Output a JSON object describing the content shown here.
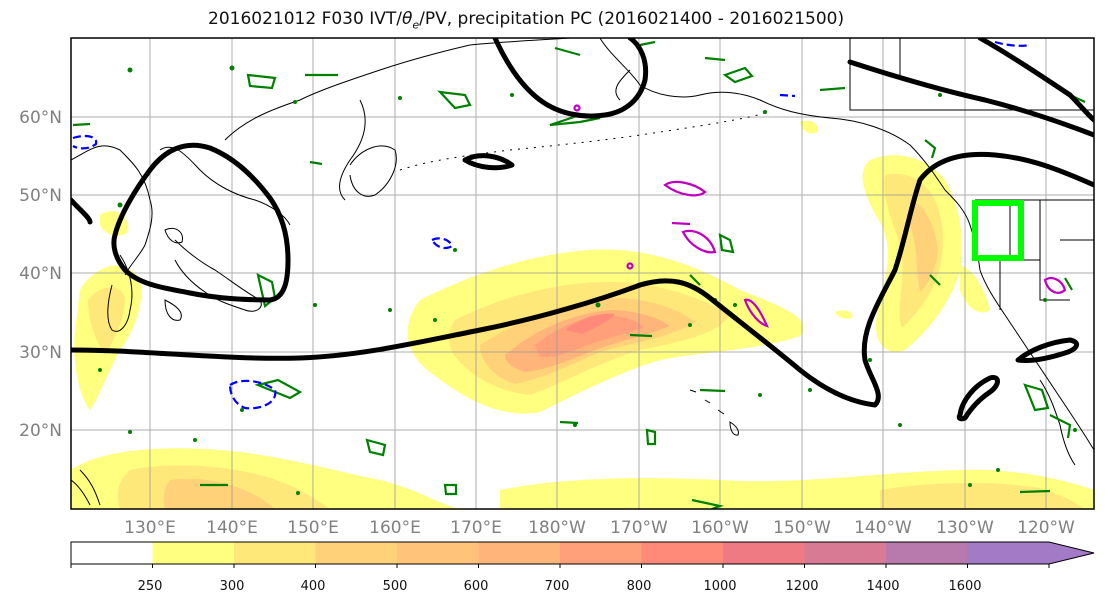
{
  "title": {
    "prefix": "2016021012 F030 IVT/",
    "theta": "θ",
    "theta_sub": "e",
    "suffix": "/PV, precipitation PC (2016021400 - 2016021500)"
  },
  "map": {
    "lat_labels": [
      "60°N",
      "50°N",
      "40°N",
      "30°N",
      "20°N"
    ],
    "lon_labels": [
      "130°E",
      "140°E",
      "150°E",
      "160°E",
      "170°E",
      "180°W",
      "170°W",
      "160°W",
      "150°W",
      "140°W",
      "130°W",
      "120°W"
    ],
    "label_color": "#808080"
  },
  "colorbar": {
    "tick_labels": [
      "250",
      "300",
      "400",
      "500",
      "600",
      "700",
      "800",
      "1000",
      "1200",
      "1400",
      "1600"
    ],
    "colors": [
      "#ffffff",
      "#ffff80",
      "#ffe87a",
      "#ffd27a",
      "#ffc37a",
      "#ffb47a",
      "#ffa07a",
      "#ff8a7a",
      "#f07a84",
      "#d87a94",
      "#b87aac",
      "#a27ac6"
    ]
  },
  "colors": {
    "ivt_contour": "#000000",
    "theta_contour": "#008000",
    "pv_positive": "#c000c0",
    "pv_negative": "#0000ff",
    "box": "#00ff00"
  }
}
